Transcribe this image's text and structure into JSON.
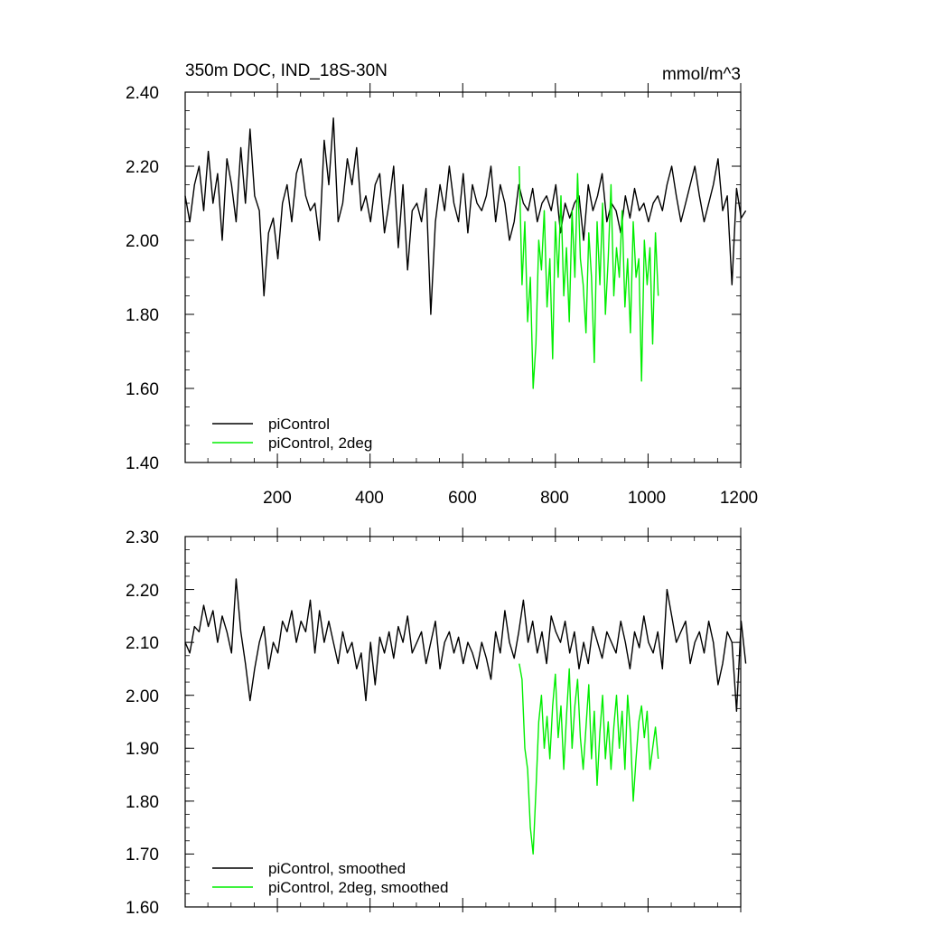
{
  "colors": {
    "control": "#000000",
    "two_deg": "#00ee00",
    "axis": "#000000"
  },
  "chart_data": [
    {
      "type": "line",
      "title": "350m DOC, IND_18S-30N",
      "units": "mmol/m^3",
      "xlim": [
        1,
        1200
      ],
      "ylim": [
        1.4,
        2.4
      ],
      "x_ticks": [
        200,
        400,
        600,
        800,
        1000,
        1200
      ],
      "x_tick_labels": [
        "200",
        "400",
        "600",
        "800",
        "1000",
        "1200"
      ],
      "y_ticks": [
        1.4,
        1.6,
        1.8,
        2.0,
        2.2,
        2.4
      ],
      "y_tick_labels": [
        "1.40",
        "1.60",
        "1.80",
        "2.00",
        "2.20",
        "2.40"
      ],
      "legend": [
        "piControl",
        "piControl, 2deg"
      ],
      "legend_position": "bottom-left",
      "series": [
        {
          "name": "piControl",
          "color": "#000000",
          "x_start": 1,
          "x_step": 10,
          "values": [
            2.12,
            2.05,
            2.15,
            2.2,
            2.08,
            2.24,
            2.1,
            2.18,
            2.0,
            2.22,
            2.15,
            2.05,
            2.25,
            2.1,
            2.3,
            2.12,
            2.08,
            1.85,
            2.02,
            2.06,
            1.95,
            2.1,
            2.15,
            2.05,
            2.18,
            2.22,
            2.12,
            2.08,
            2.1,
            2.0,
            2.27,
            2.15,
            2.33,
            2.05,
            2.1,
            2.22,
            2.15,
            2.25,
            2.08,
            2.12,
            2.05,
            2.15,
            2.18,
            2.02,
            2.1,
            2.2,
            1.98,
            2.15,
            1.92,
            2.08,
            2.1,
            2.05,
            2.14,
            1.8,
            2.05,
            2.15,
            2.08,
            2.2,
            2.1,
            2.05,
            2.18,
            2.02,
            2.15,
            2.1,
            2.08,
            2.12,
            2.2,
            2.05,
            2.15,
            2.1,
            2.0,
            2.05,
            2.15,
            2.1,
            2.08,
            2.14,
            2.05,
            2.1,
            2.12,
            2.08,
            2.15,
            2.02,
            2.1,
            2.06,
            2.1,
            2.12,
            2.0,
            2.15,
            2.08,
            2.12,
            2.18,
            2.05,
            2.1,
            2.08,
            2.02,
            2.12,
            2.06,
            2.14,
            2.08,
            2.1,
            2.05,
            2.1,
            2.12,
            2.08,
            2.15,
            2.2,
            2.12,
            2.05,
            2.1,
            2.15,
            2.2,
            2.12,
            2.05,
            2.1,
            2.15,
            2.22,
            2.08,
            2.12,
            1.88,
            2.14,
            2.06,
            2.08
          ]
        },
        {
          "name": "piControl, 2deg",
          "color": "#00ee00",
          "x_start": 722,
          "x_step": 6,
          "values": [
            2.2,
            1.88,
            2.05,
            1.78,
            1.9,
            1.6,
            1.72,
            2.0,
            1.92,
            2.08,
            1.82,
            1.95,
            1.68,
            2.05,
            1.9,
            2.12,
            1.85,
            1.98,
            1.78,
            2.08,
            1.9,
            2.18,
            1.95,
            1.88,
            1.75,
            2.02,
            1.9,
            1.67,
            2.05,
            1.88,
            2.1,
            1.8,
            1.95,
            2.15,
            1.85,
            1.98,
            1.9,
            2.08,
            1.82,
            1.95,
            1.75,
            2.05,
            1.9,
            1.95,
            1.62,
            2.0,
            1.88,
            1.98,
            1.72,
            2.02,
            1.85
          ]
        }
      ]
    },
    {
      "type": "line",
      "xlim": [
        1,
        1200
      ],
      "ylim": [
        1.6,
        2.3
      ],
      "y_ticks": [
        1.6,
        1.7,
        1.8,
        1.9,
        2.0,
        2.1,
        2.2,
        2.3
      ],
      "y_tick_labels": [
        "1.60",
        "1.70",
        "1.80",
        "1.90",
        "2.00",
        "2.10",
        "2.20",
        "2.30"
      ],
      "legend": [
        "piControl, smoothed",
        "piControl, 2deg, smoothed"
      ],
      "legend_position": "bottom-left",
      "series": [
        {
          "name": "piControl, smoothed",
          "color": "#000000",
          "x_start": 1,
          "x_step": 10,
          "values": [
            2.1,
            2.08,
            2.13,
            2.12,
            2.17,
            2.13,
            2.16,
            2.1,
            2.15,
            2.12,
            2.08,
            2.22,
            2.12,
            2.06,
            1.99,
            2.05,
            2.1,
            2.13,
            2.05,
            2.1,
            2.08,
            2.14,
            2.12,
            2.16,
            2.1,
            2.14,
            2.12,
            2.18,
            2.08,
            2.16,
            2.1,
            2.14,
            2.1,
            2.06,
            2.12,
            2.08,
            2.1,
            2.05,
            2.08,
            1.99,
            2.1,
            2.02,
            2.11,
            2.08,
            2.12,
            2.07,
            2.13,
            2.1,
            2.15,
            2.08,
            2.1,
            2.12,
            2.06,
            2.1,
            2.14,
            2.05,
            2.1,
            2.12,
            2.08,
            2.11,
            2.06,
            2.1,
            2.08,
            2.05,
            2.1,
            2.07,
            2.03,
            2.12,
            2.08,
            2.16,
            2.1,
            2.07,
            2.12,
            2.18,
            2.1,
            2.14,
            2.08,
            2.12,
            2.06,
            2.15,
            2.12,
            2.1,
            2.14,
            2.08,
            2.12,
            2.05,
            2.1,
            2.06,
            2.13,
            2.1,
            2.07,
            2.12,
            2.1,
            2.08,
            2.14,
            2.1,
            2.05,
            2.12,
            2.09,
            2.15,
            2.1,
            2.08,
            2.12,
            2.05,
            2.2,
            2.15,
            2.1,
            2.12,
            2.14,
            2.06,
            2.1,
            2.12,
            2.08,
            2.14,
            2.1,
            2.02,
            2.06,
            2.12,
            2.1,
            1.97,
            2.14,
            2.06
          ]
        },
        {
          "name": "piControl, 2deg, smoothed",
          "color": "#00ee00",
          "x_start": 722,
          "x_step": 6,
          "values": [
            2.06,
            2.03,
            1.9,
            1.86,
            1.75,
            1.7,
            1.82,
            1.95,
            2.0,
            1.9,
            1.96,
            1.88,
            1.98,
            2.04,
            1.92,
            1.98,
            1.86,
            1.96,
            2.05,
            1.9,
            1.98,
            2.03,
            1.92,
            1.86,
            1.94,
            2.02,
            1.88,
            1.97,
            1.83,
            1.93,
            2.0,
            1.88,
            1.95,
            1.86,
            1.94,
            2.0,
            1.9,
            1.97,
            1.86,
            2.0,
            1.93,
            1.8,
            1.88,
            1.95,
            1.98,
            1.92,
            1.97,
            1.86,
            1.9,
            1.94,
            1.88
          ]
        }
      ]
    }
  ]
}
